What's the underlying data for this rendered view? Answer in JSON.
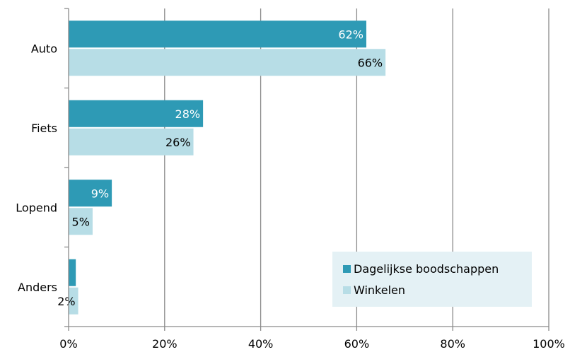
{
  "chart_data": {
    "type": "bar",
    "orientation": "horizontal",
    "categories": [
      "Auto",
      "Fiets",
      "Lopend",
      "Anders"
    ],
    "series": [
      {
        "name": "Dagelijkse boodschappen",
        "values": [
          62,
          28,
          9,
          1.5
        ],
        "labels": [
          "62%",
          "28%",
          "9%",
          ""
        ],
        "color": "#2e9ab5",
        "label_color": "#ffffff"
      },
      {
        "name": "Winkelen",
        "values": [
          66,
          26,
          5,
          2
        ],
        "labels": [
          "66%",
          "26%",
          "5%",
          "2%"
        ],
        "color": "#b7dde6",
        "label_color": "#000000"
      }
    ],
    "x_ticks": [
      "0%",
      "20%",
      "40%",
      "60%",
      "80%",
      "100%"
    ],
    "xlim": [
      0,
      100
    ],
    "grid": "vertical",
    "legend_position": "bottom-right",
    "legend_background": "#e4f1f5",
    "title": "",
    "xlabel": "",
    "ylabel": ""
  }
}
